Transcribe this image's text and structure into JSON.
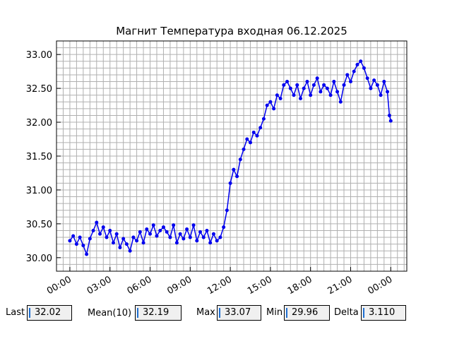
{
  "chart_data": {
    "type": "line",
    "title": "Магнит Температура входная 06.12.2025",
    "xlabel": "",
    "ylabel": "",
    "x_unit": "hours since 00:00",
    "xlim": [
      -1.0,
      25.2
    ],
    "ylim": [
      29.8,
      33.2
    ],
    "x_tick_labels": [
      "00:00",
      "03:00",
      "06:00",
      "09:00",
      "12:00",
      "15:00",
      "18:00",
      "21:00",
      "00:00"
    ],
    "y_tick_labels": [
      "30.00",
      "30.50",
      "31.00",
      "31.50",
      "32.00",
      "32.50",
      "33.00"
    ],
    "grid": true,
    "series_color": "#0000ee",
    "series": [
      {
        "name": "",
        "x": [
          0.0,
          0.25,
          0.5,
          0.75,
          1.0,
          1.25,
          1.5,
          1.75,
          2.0,
          2.25,
          2.5,
          2.75,
          3.0,
          3.25,
          3.5,
          3.75,
          4.0,
          4.25,
          4.5,
          4.75,
          5.0,
          5.25,
          5.5,
          5.75,
          6.0,
          6.25,
          6.5,
          6.75,
          7.0,
          7.25,
          7.5,
          7.75,
          8.0,
          8.25,
          8.5,
          8.75,
          9.0,
          9.25,
          9.5,
          9.75,
          10.0,
          10.25,
          10.5,
          10.75,
          11.0,
          11.25,
          11.5,
          11.75,
          12.0,
          12.25,
          12.5,
          12.75,
          13.0,
          13.25,
          13.5,
          13.75,
          14.0,
          14.25,
          14.5,
          14.75,
          15.0,
          15.25,
          15.5,
          15.75,
          16.0,
          16.25,
          16.5,
          16.75,
          17.0,
          17.25,
          17.5,
          17.75,
          18.0,
          18.25,
          18.5,
          18.75,
          19.0,
          19.25,
          19.5,
          19.75,
          20.0,
          20.25,
          20.5,
          20.75,
          21.0,
          21.25,
          21.5,
          21.75,
          22.0,
          22.25,
          22.5,
          22.75,
          23.0,
          23.25,
          23.5,
          23.75,
          23.9,
          24.0
        ],
        "values": [
          30.25,
          30.32,
          30.2,
          30.3,
          30.18,
          30.05,
          30.28,
          30.4,
          30.52,
          30.35,
          30.45,
          30.3,
          30.4,
          30.22,
          30.35,
          30.15,
          30.28,
          30.2,
          30.1,
          30.3,
          30.25,
          30.38,
          30.22,
          30.42,
          30.35,
          30.48,
          30.32,
          30.4,
          30.45,
          30.38,
          30.3,
          30.48,
          30.22,
          30.35,
          30.28,
          30.42,
          30.3,
          30.48,
          30.25,
          30.38,
          30.3,
          30.4,
          30.22,
          30.35,
          30.25,
          30.3,
          30.45,
          30.7,
          31.1,
          31.3,
          31.2,
          31.45,
          31.6,
          31.75,
          31.7,
          31.85,
          31.8,
          31.92,
          32.05,
          32.25,
          32.3,
          32.2,
          32.4,
          32.35,
          32.55,
          32.6,
          32.5,
          32.4,
          32.55,
          32.35,
          32.5,
          32.6,
          32.4,
          32.55,
          32.65,
          32.45,
          32.55,
          32.5,
          32.4,
          32.6,
          32.45,
          32.3,
          32.55,
          32.7,
          32.6,
          32.75,
          32.85,
          32.9,
          32.8,
          32.65,
          32.5,
          32.62,
          32.55,
          32.4,
          32.6,
          32.45,
          32.1,
          32.02
        ]
      }
    ]
  },
  "stats": {
    "last_label": "Last",
    "last_value": "32.02",
    "mean_label": "Mean(10)",
    "mean_value": "32.19",
    "max_label": "Max",
    "max_value": "33.07",
    "min_label": "Min",
    "min_value": "29.96",
    "delta_label": "Delta",
    "delta_value": "3.110"
  }
}
